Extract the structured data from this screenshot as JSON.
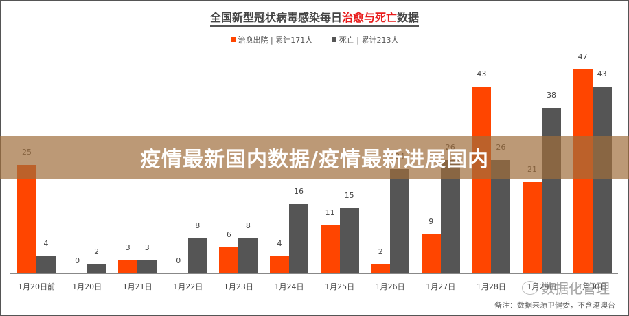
{
  "title": {
    "prefix": "全国新型冠状病毒感染每日",
    "highlight": "治愈与死亡",
    "suffix": "数据"
  },
  "legend": {
    "recovered": "治愈出院 | 累计171人",
    "deaths": "死亡 | 累计213人"
  },
  "colors": {
    "recovered": "#ff4500",
    "deaths": "#555555",
    "banner": "#b98b61"
  },
  "banner": {
    "text": "疫情最新国内数据/疫情最新进展国内"
  },
  "watermark": {
    "text": "数据化管理",
    "icon": "wechat-icon"
  },
  "note": "备注：数据来源卫健委，不含港澳台",
  "chart_data": {
    "type": "bar",
    "title": "全国新型冠状病毒感染每日治愈与死亡数据",
    "xlabel": "",
    "ylabel": "",
    "ylim": [
      0,
      50
    ],
    "grid": false,
    "legend_position": "top",
    "categories": [
      "1月20日前",
      "1月20日",
      "1月21日",
      "1月22日",
      "1月23日",
      "1月24日",
      "1月25日",
      "1月26日",
      "1月27日",
      "1月28日",
      "1月29日",
      "1月30日"
    ],
    "series": [
      {
        "name": "治愈出院 | 累计171人",
        "color": "#ff4500",
        "values": [
          25,
          0,
          3,
          0,
          6,
          4,
          11,
          2,
          9,
          43,
          21,
          47
        ]
      },
      {
        "name": "死亡 | 累计213人",
        "color": "#555555",
        "values": [
          4,
          2,
          3,
          8,
          8,
          16,
          15,
          24,
          26,
          26,
          38,
          43
        ]
      }
    ]
  }
}
